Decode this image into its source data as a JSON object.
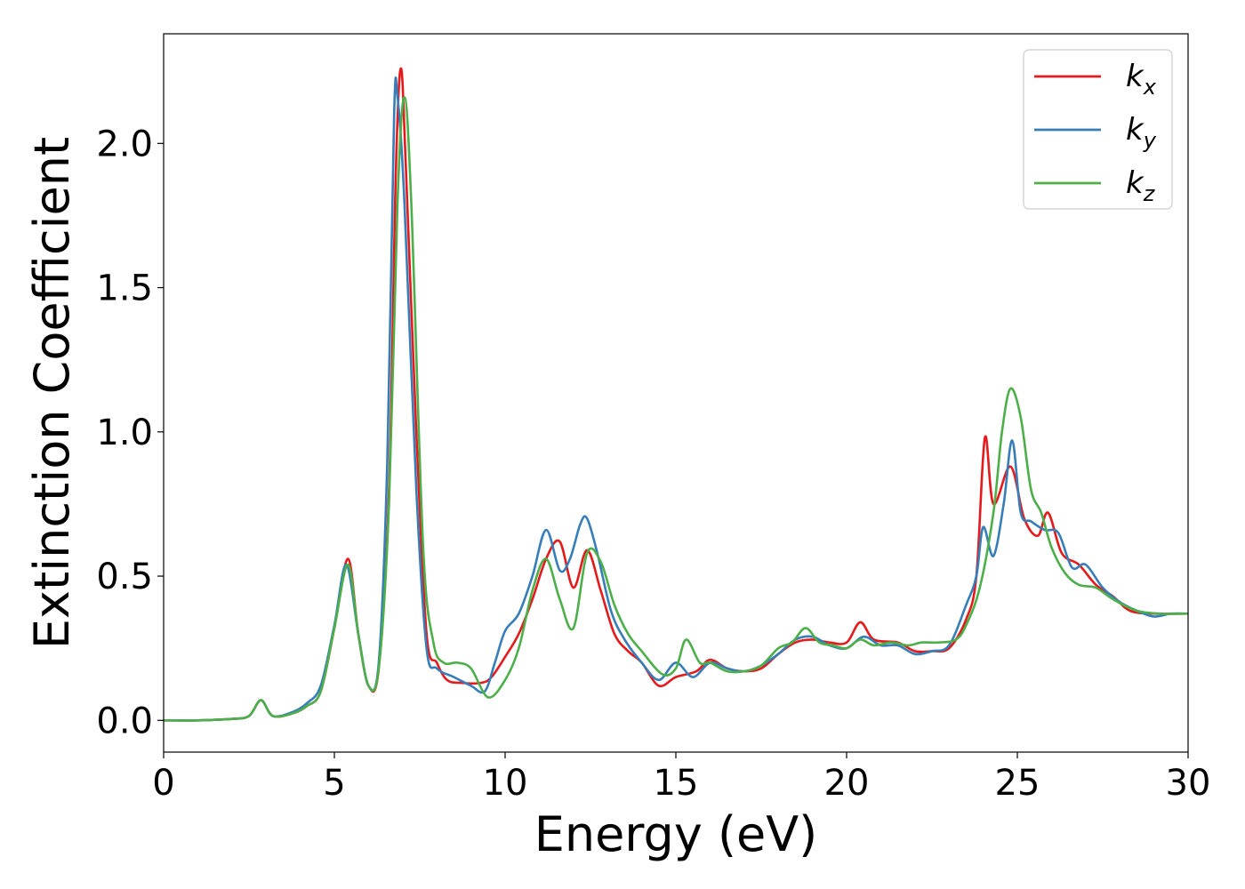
{
  "chart_data": {
    "type": "line",
    "xlabel": "Energy (eV)",
    "ylabel": "Extinction Coefficient",
    "xlim": [
      0,
      30
    ],
    "ylim": [
      -0.11,
      2.38
    ],
    "xticks": [
      0,
      5,
      10,
      15,
      20,
      25,
      30
    ],
    "xtick_labels": [
      "0",
      "5",
      "10",
      "15",
      "20",
      "25",
      "30"
    ],
    "yticks": [
      0.0,
      0.5,
      1.0,
      1.5,
      2.0
    ],
    "ytick_labels": [
      "0.0",
      "0.5",
      "1.0",
      "1.5",
      "2.0"
    ],
    "grid": false,
    "legend_position": "top-right",
    "series": [
      {
        "name": "k",
        "subscript": "x",
        "color": "#e41a1c",
        "points": [
          [
            0,
            0
          ],
          [
            1,
            0
          ],
          [
            2,
            0.005
          ],
          [
            2.5,
            0.015
          ],
          [
            2.85,
            0.07
          ],
          [
            3.2,
            0.015
          ],
          [
            3.8,
            0.025
          ],
          [
            4.2,
            0.05
          ],
          [
            4.6,
            0.1
          ],
          [
            5.0,
            0.32
          ],
          [
            5.4,
            0.56
          ],
          [
            5.7,
            0.3
          ],
          [
            6.0,
            0.12
          ],
          [
            6.3,
            0.18
          ],
          [
            6.6,
            0.8
          ],
          [
            6.8,
            1.9
          ],
          [
            6.95,
            2.26
          ],
          [
            7.1,
            1.9
          ],
          [
            7.4,
            1.0
          ],
          [
            7.7,
            0.3
          ],
          [
            8.0,
            0.2
          ],
          [
            8.3,
            0.14
          ],
          [
            8.7,
            0.13
          ],
          [
            9.3,
            0.13
          ],
          [
            9.6,
            0.15
          ],
          [
            10.0,
            0.22
          ],
          [
            10.4,
            0.3
          ],
          [
            10.8,
            0.42
          ],
          [
            11.2,
            0.56
          ],
          [
            11.6,
            0.62
          ],
          [
            12.0,
            0.46
          ],
          [
            12.4,
            0.59
          ],
          [
            12.8,
            0.45
          ],
          [
            13.2,
            0.3
          ],
          [
            13.6,
            0.24
          ],
          [
            14.0,
            0.2
          ],
          [
            14.5,
            0.12
          ],
          [
            15.0,
            0.15
          ],
          [
            15.6,
            0.17
          ],
          [
            16.0,
            0.21
          ],
          [
            16.5,
            0.18
          ],
          [
            17.0,
            0.17
          ],
          [
            17.5,
            0.18
          ],
          [
            18.0,
            0.23
          ],
          [
            18.5,
            0.27
          ],
          [
            19.0,
            0.28
          ],
          [
            19.5,
            0.27
          ],
          [
            20.0,
            0.27
          ],
          [
            20.4,
            0.34
          ],
          [
            20.8,
            0.28
          ],
          [
            21.5,
            0.27
          ],
          [
            22.0,
            0.24
          ],
          [
            22.5,
            0.24
          ],
          [
            23.0,
            0.25
          ],
          [
            23.5,
            0.35
          ],
          [
            23.8,
            0.5
          ],
          [
            24.05,
            0.98
          ],
          [
            24.3,
            0.75
          ],
          [
            24.8,
            0.88
          ],
          [
            25.2,
            0.7
          ],
          [
            25.6,
            0.64
          ],
          [
            25.9,
            0.72
          ],
          [
            26.3,
            0.58
          ],
          [
            26.8,
            0.54
          ],
          [
            27.3,
            0.47
          ],
          [
            27.8,
            0.43
          ],
          [
            28.3,
            0.38
          ],
          [
            29.0,
            0.37
          ],
          [
            30.0,
            0.37
          ]
        ]
      },
      {
        "name": "k",
        "subscript": "y",
        "color": "#377eb8",
        "points": [
          [
            0,
            0
          ],
          [
            1,
            0
          ],
          [
            2,
            0.005
          ],
          [
            2.5,
            0.015
          ],
          [
            2.85,
            0.07
          ],
          [
            3.2,
            0.015
          ],
          [
            3.8,
            0.03
          ],
          [
            4.2,
            0.06
          ],
          [
            4.6,
            0.12
          ],
          [
            5.0,
            0.33
          ],
          [
            5.35,
            0.54
          ],
          [
            5.7,
            0.3
          ],
          [
            6.0,
            0.12
          ],
          [
            6.3,
            0.2
          ],
          [
            6.55,
            0.9
          ],
          [
            6.75,
            2.1
          ],
          [
            6.85,
            2.16
          ],
          [
            7.05,
            1.8
          ],
          [
            7.4,
            0.8
          ],
          [
            7.7,
            0.25
          ],
          [
            8.0,
            0.18
          ],
          [
            8.5,
            0.15
          ],
          [
            9.0,
            0.12
          ],
          [
            9.4,
            0.1
          ],
          [
            9.7,
            0.2
          ],
          [
            10.0,
            0.31
          ],
          [
            10.4,
            0.37
          ],
          [
            10.8,
            0.5
          ],
          [
            11.2,
            0.66
          ],
          [
            11.6,
            0.52
          ],
          [
            11.9,
            0.56
          ],
          [
            12.2,
            0.68
          ],
          [
            12.4,
            0.7
          ],
          [
            12.7,
            0.58
          ],
          [
            13.1,
            0.38
          ],
          [
            13.5,
            0.28
          ],
          [
            14.0,
            0.2
          ],
          [
            14.5,
            0.14
          ],
          [
            15.0,
            0.2
          ],
          [
            15.5,
            0.15
          ],
          [
            16.0,
            0.2
          ],
          [
            16.5,
            0.18
          ],
          [
            17.0,
            0.17
          ],
          [
            17.5,
            0.19
          ],
          [
            18.0,
            0.23
          ],
          [
            18.5,
            0.28
          ],
          [
            19.0,
            0.29
          ],
          [
            19.5,
            0.26
          ],
          [
            20.0,
            0.25
          ],
          [
            20.5,
            0.29
          ],
          [
            21.0,
            0.26
          ],
          [
            21.5,
            0.26
          ],
          [
            22.0,
            0.23
          ],
          [
            22.5,
            0.24
          ],
          [
            23.0,
            0.26
          ],
          [
            23.5,
            0.4
          ],
          [
            23.8,
            0.5
          ],
          [
            24.0,
            0.67
          ],
          [
            24.3,
            0.57
          ],
          [
            24.6,
            0.75
          ],
          [
            24.85,
            0.97
          ],
          [
            25.1,
            0.72
          ],
          [
            25.4,
            0.69
          ],
          [
            25.8,
            0.66
          ],
          [
            26.2,
            0.65
          ],
          [
            26.6,
            0.53
          ],
          [
            27.0,
            0.54
          ],
          [
            27.5,
            0.46
          ],
          [
            28.0,
            0.41
          ],
          [
            28.5,
            0.38
          ],
          [
            29.0,
            0.36
          ],
          [
            29.5,
            0.37
          ],
          [
            30.0,
            0.37
          ]
        ]
      },
      {
        "name": "k",
        "subscript": "z",
        "color": "#4daf4a",
        "points": [
          [
            0,
            0
          ],
          [
            1,
            0
          ],
          [
            2,
            0.005
          ],
          [
            2.5,
            0.015
          ],
          [
            2.85,
            0.07
          ],
          [
            3.2,
            0.015
          ],
          [
            3.8,
            0.025
          ],
          [
            4.2,
            0.05
          ],
          [
            4.6,
            0.1
          ],
          [
            5.0,
            0.32
          ],
          [
            5.4,
            0.54
          ],
          [
            5.7,
            0.3
          ],
          [
            6.0,
            0.12
          ],
          [
            6.3,
            0.18
          ],
          [
            6.6,
            0.75
          ],
          [
            6.85,
            1.8
          ],
          [
            7.05,
            2.16
          ],
          [
            7.25,
            1.8
          ],
          [
            7.6,
            0.6
          ],
          [
            7.9,
            0.27
          ],
          [
            8.2,
            0.2
          ],
          [
            8.6,
            0.2
          ],
          [
            9.0,
            0.18
          ],
          [
            9.5,
            0.08
          ],
          [
            10.0,
            0.14
          ],
          [
            10.4,
            0.25
          ],
          [
            10.8,
            0.45
          ],
          [
            11.2,
            0.56
          ],
          [
            11.6,
            0.42
          ],
          [
            12.0,
            0.32
          ],
          [
            12.4,
            0.58
          ],
          [
            12.8,
            0.55
          ],
          [
            13.2,
            0.4
          ],
          [
            13.6,
            0.3
          ],
          [
            14.0,
            0.24
          ],
          [
            14.6,
            0.16
          ],
          [
            15.0,
            0.18
          ],
          [
            15.3,
            0.28
          ],
          [
            15.7,
            0.2
          ],
          [
            16.0,
            0.2
          ],
          [
            16.5,
            0.17
          ],
          [
            17.0,
            0.17
          ],
          [
            17.5,
            0.19
          ],
          [
            18.0,
            0.25
          ],
          [
            18.4,
            0.27
          ],
          [
            18.8,
            0.32
          ],
          [
            19.2,
            0.27
          ],
          [
            19.6,
            0.26
          ],
          [
            20.0,
            0.25
          ],
          [
            20.4,
            0.28
          ],
          [
            20.8,
            0.26
          ],
          [
            21.3,
            0.27
          ],
          [
            21.8,
            0.26
          ],
          [
            22.2,
            0.27
          ],
          [
            22.7,
            0.27
          ],
          [
            23.2,
            0.28
          ],
          [
            23.5,
            0.33
          ],
          [
            23.9,
            0.46
          ],
          [
            24.3,
            0.72
          ],
          [
            24.55,
            1.0
          ],
          [
            24.8,
            1.15
          ],
          [
            25.1,
            1.05
          ],
          [
            25.4,
            0.8
          ],
          [
            25.7,
            0.72
          ],
          [
            26.0,
            0.6
          ],
          [
            26.4,
            0.51
          ],
          [
            26.8,
            0.47
          ],
          [
            27.3,
            0.46
          ],
          [
            27.8,
            0.42
          ],
          [
            28.5,
            0.38
          ],
          [
            29.2,
            0.37
          ],
          [
            30.0,
            0.37
          ]
        ]
      }
    ]
  }
}
